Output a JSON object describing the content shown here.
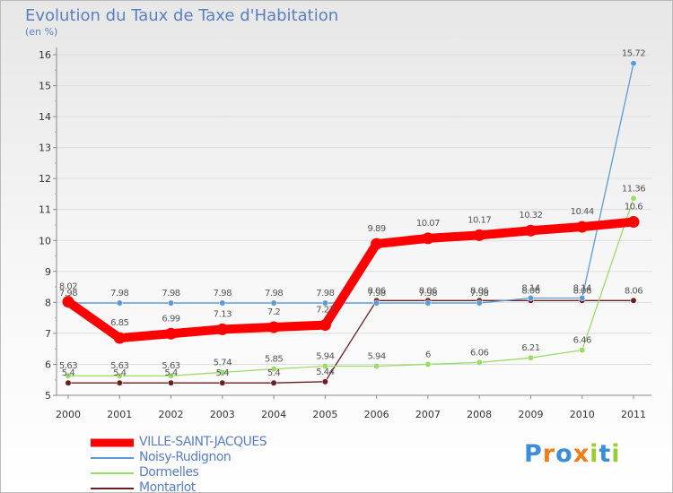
{
  "title": "Evolution du Taux de Taxe d'Habitation",
  "subtitle": "(en %)",
  "logo": {
    "text": "Proxiti",
    "letters": [
      {
        "ch": "P",
        "color": "#3b8fd6"
      },
      {
        "ch": "r",
        "color": "#f07c1a"
      },
      {
        "ch": "o",
        "color": "#3b8fd6"
      },
      {
        "ch": "x",
        "color": "#f07c1a"
      },
      {
        "ch": "i",
        "color": "#9acd32"
      },
      {
        "ch": "t",
        "color": "#3b8fd6"
      },
      {
        "ch": "i",
        "color": "#9acd32"
      }
    ]
  },
  "chart_data": {
    "type": "line",
    "title": "Evolution du Taux de Taxe d'Habitation",
    "ylabel": "(en %)",
    "xlabel": "",
    "ylim": [
      5,
      16
    ],
    "yticks": [
      5,
      6,
      7,
      8,
      9,
      10,
      11,
      12,
      13,
      14,
      15,
      16
    ],
    "categories": [
      "2000",
      "2001",
      "2002",
      "2003",
      "2004",
      "2005",
      "2006",
      "2007",
      "2008",
      "2009",
      "2010",
      "2011"
    ],
    "legend_position": "bottom-left",
    "series": [
      {
        "name": "VILLE-SAINT-JACQUES",
        "color": "#ff0000",
        "values": [
          8.02,
          6.85,
          6.99,
          7.13,
          7.2,
          7.27,
          9.89,
          10.07,
          10.17,
          10.32,
          10.44,
          10.6
        ],
        "labels": [
          "8.02",
          "6.85",
          "6.99",
          "7.13",
          "7.2",
          "7.27",
          "9.89",
          "10.07",
          "10.17",
          "10.32",
          "10.44",
          "10.6"
        ]
      },
      {
        "name": "Noisy-Rudignon",
        "color": "#5b9bd5",
        "values": [
          7.98,
          7.98,
          7.98,
          7.98,
          7.98,
          7.98,
          7.98,
          7.98,
          7.98,
          8.14,
          8.14,
          15.72
        ],
        "labels": [
          "7.98",
          "7.98",
          "7.98",
          "7.98",
          "7.98",
          "7.98",
          "7.98",
          "7.98",
          "7.98",
          "8.14",
          "8.14",
          "15.72"
        ]
      },
      {
        "name": "Dormelles",
        "color": "#99dd66",
        "values": [
          5.63,
          5.63,
          5.63,
          5.74,
          5.85,
          5.94,
          5.94,
          6,
          6.06,
          6.21,
          6.46,
          11.36
        ],
        "labels": [
          "5.63",
          "5.63",
          "5.63",
          "5.74",
          "5.85",
          "5.94",
          "5.94",
          "6",
          "6.06",
          "6.21",
          "6.46",
          "11.36"
        ]
      },
      {
        "name": "Montarlot",
        "color": "#6b1f1f",
        "values": [
          5.4,
          5.4,
          5.4,
          5.4,
          5.4,
          5.44,
          8.06,
          8.06,
          8.06,
          8.06,
          8.06,
          8.06
        ],
        "labels": [
          "5.4",
          "5.4",
          "5.4",
          "5.4",
          "5.4",
          "5.44",
          "8.06",
          "8.06",
          "8.06",
          "8.06",
          "8.06",
          "8.06"
        ]
      }
    ]
  }
}
